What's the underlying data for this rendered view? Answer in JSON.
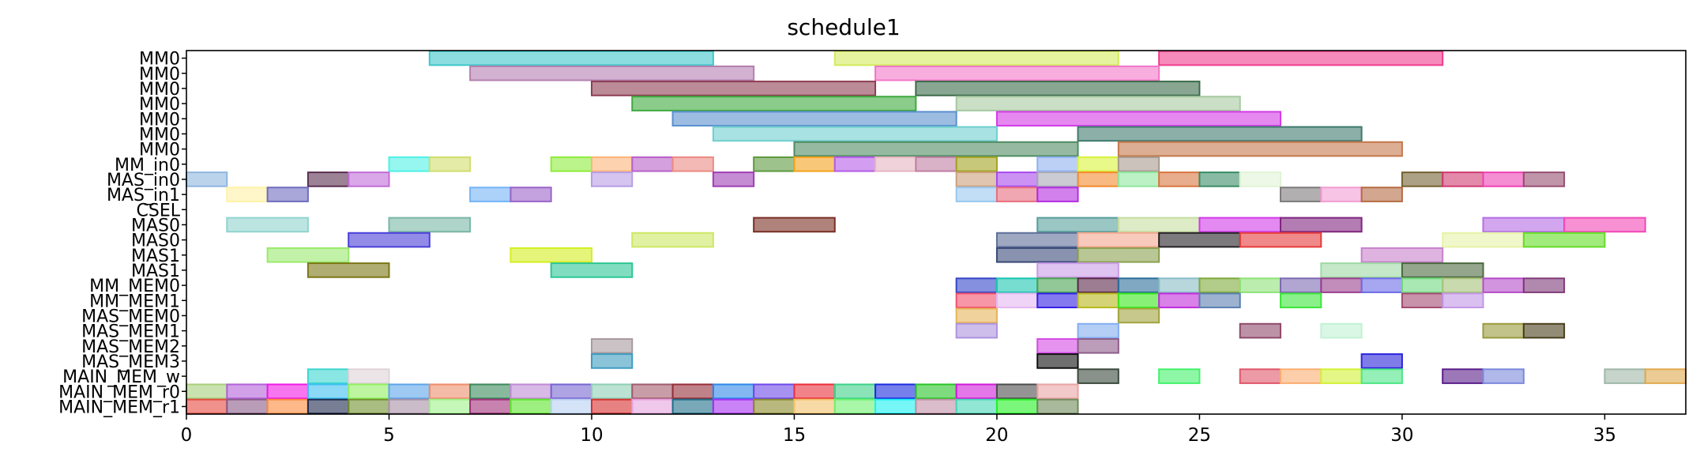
{
  "chart_data": {
    "type": "gantt",
    "title": "schedule1",
    "xlabel": "",
    "ylabel": "",
    "xlim": [
      0,
      37
    ],
    "xticks": [
      0,
      5,
      10,
      15,
      20,
      25,
      30,
      35
    ],
    "grid": false,
    "legend": "none",
    "rows": [
      "MM0",
      "MM0",
      "MM0",
      "MM0",
      "MM0",
      "MM0",
      "MM0",
      "MM_in0",
      "MAS_in0",
      "MAS_in1",
      "CSEL",
      "MAS0",
      "MAS0",
      "MAS1",
      "MAS1",
      "MM_MEM0",
      "MM_MEM1",
      "MAS_MEM0",
      "MAS_MEM1",
      "MAS_MEM2",
      "MAS_MEM3",
      "MAIN_MEM_w",
      "MAIN_MEM_r0",
      "MAIN_MEM_r1"
    ],
    "tasks": [
      {
        "row": 0,
        "start": 6,
        "end": 13,
        "color": "#3fc7c9"
      },
      {
        "row": 0,
        "start": 16,
        "end": 23,
        "color": "#d4ea5e"
      },
      {
        "row": 0,
        "start": 24,
        "end": 31,
        "color": "#f03c8c"
      },
      {
        "row": 1,
        "start": 7,
        "end": 14,
        "color": "#b47fb0"
      },
      {
        "row": 1,
        "start": 17,
        "end": 24,
        "color": "#f277c8"
      },
      {
        "row": 2,
        "start": 10,
        "end": 17,
        "color": "#8e3d52"
      },
      {
        "row": 2,
        "start": 18,
        "end": 25,
        "color": "#3b6b4a"
      },
      {
        "row": 3,
        "start": 11,
        "end": 18,
        "color": "#3daa3d"
      },
      {
        "row": 3,
        "start": 19,
        "end": 26,
        "color": "#a6c9a0"
      },
      {
        "row": 4,
        "start": 12,
        "end": 19,
        "color": "#5b8fcf"
      },
      {
        "row": 4,
        "start": 20,
        "end": 27,
        "color": "#d33be6"
      },
      {
        "row": 5,
        "start": 13,
        "end": 20,
        "color": "#6fcfcf"
      },
      {
        "row": 5,
        "start": 22,
        "end": 29,
        "color": "#3f7a6d"
      },
      {
        "row": 6,
        "start": 15,
        "end": 22,
        "color": "#4f8c62"
      },
      {
        "row": 6,
        "start": 23,
        "end": 30,
        "color": "#c4784b"
      },
      {
        "row": 7,
        "start": 5,
        "end": 6,
        "color": "#4ff1e6"
      },
      {
        "row": 7,
        "start": 6,
        "end": 7,
        "color": "#d2dd6d"
      },
      {
        "row": 7,
        "start": 9,
        "end": 10,
        "color": "#8eec3c"
      },
      {
        "row": 7,
        "start": 10,
        "end": 11,
        "color": "#fbb57a"
      },
      {
        "row": 7,
        "start": 11,
        "end": 12,
        "color": "#b861c7"
      },
      {
        "row": 7,
        "start": 12,
        "end": 13,
        "color": "#eb8b83"
      },
      {
        "row": 7,
        "start": 14,
        "end": 15,
        "color": "#5d9a3f"
      },
      {
        "row": 7,
        "start": 15,
        "end": 16,
        "color": "#f3a21d"
      },
      {
        "row": 7,
        "start": 16,
        "end": 17,
        "color": "#b55de8"
      },
      {
        "row": 7,
        "start": 17,
        "end": 18,
        "color": "#e6b5c1"
      },
      {
        "row": 7,
        "start": 18,
        "end": 19,
        "color": "#bf7fa3"
      },
      {
        "row": 7,
        "start": 19,
        "end": 20,
        "color": "#a4a323"
      },
      {
        "row": 7,
        "start": 21,
        "end": 22,
        "color": "#8fb1f0"
      },
      {
        "row": 7,
        "start": 22,
        "end": 23,
        "color": "#d9f33b"
      },
      {
        "row": 7,
        "start": 23,
        "end": 24,
        "color": "#a89a8f"
      },
      {
        "row": 8,
        "start": 0,
        "end": 1,
        "color": "#8fb6e0"
      },
      {
        "row": 8,
        "start": 3,
        "end": 4,
        "color": "#5a2f4f"
      },
      {
        "row": 8,
        "start": 4,
        "end": 5,
        "color": "#c16ed8"
      },
      {
        "row": 8,
        "start": 10,
        "end": 11,
        "color": "#b89de4"
      },
      {
        "row": 8,
        "start": 13,
        "end": 14,
        "color": "#9f3fb5"
      },
      {
        "row": 8,
        "start": 19,
        "end": 20,
        "color": "#cc9f7b"
      },
      {
        "row": 8,
        "start": 20,
        "end": 21,
        "color": "#a84aec"
      },
      {
        "row": 8,
        "start": 21,
        "end": 22,
        "color": "#a8a9b7"
      },
      {
        "row": 8,
        "start": 22,
        "end": 23,
        "color": "#f38b2f"
      },
      {
        "row": 8,
        "start": 23,
        "end": 24,
        "color": "#8ee79e"
      },
      {
        "row": 8,
        "start": 24,
        "end": 25,
        "color": "#d9763f"
      },
      {
        "row": 8,
        "start": 25,
        "end": 26,
        "color": "#3b8d67"
      },
      {
        "row": 8,
        "start": 26,
        "end": 27,
        "color": "#e1f3d6"
      },
      {
        "row": 8,
        "start": 30,
        "end": 31,
        "color": "#756232"
      },
      {
        "row": 8,
        "start": 31,
        "end": 32,
        "color": "#d13b72"
      },
      {
        "row": 8,
        "start": 32,
        "end": 33,
        "color": "#ef42b5"
      },
      {
        "row": 8,
        "start": 33,
        "end": 34,
        "color": "#964f72"
      },
      {
        "row": 9,
        "start": 1,
        "end": 2,
        "color": "#fff2a6"
      },
      {
        "row": 9,
        "start": 2,
        "end": 3,
        "color": "#6f6cbf"
      },
      {
        "row": 9,
        "start": 7,
        "end": 8,
        "color": "#74b4f7"
      },
      {
        "row": 9,
        "start": 8,
        "end": 9,
        "color": "#9b64c9"
      },
      {
        "row": 9,
        "start": 19,
        "end": 20,
        "color": "#98c8f0"
      },
      {
        "row": 9,
        "start": 20,
        "end": 21,
        "color": "#e86d7e"
      },
      {
        "row": 9,
        "start": 21,
        "end": 22,
        "color": "#b42de0"
      },
      {
        "row": 9,
        "start": 27,
        "end": 28,
        "color": "#7d7a7a"
      },
      {
        "row": 9,
        "start": 28,
        "end": 29,
        "color": "#f29cd3"
      },
      {
        "row": 9,
        "start": 29,
        "end": 30,
        "color": "#b66b44"
      },
      {
        "row": 11,
        "start": 1,
        "end": 3,
        "color": "#8fd4cf"
      },
      {
        "row": 11,
        "start": 5,
        "end": 7,
        "color": "#7ab7a5"
      },
      {
        "row": 11,
        "start": 14,
        "end": 16,
        "color": "#7a2f25"
      },
      {
        "row": 11,
        "start": 21,
        "end": 23,
        "color": "#56a09c"
      },
      {
        "row": 11,
        "start": 23,
        "end": 25,
        "color": "#c6dea1"
      },
      {
        "row": 11,
        "start": 25,
        "end": 27,
        "color": "#d23be8"
      },
      {
        "row": 11,
        "start": 27,
        "end": 29,
        "color": "#80257f"
      },
      {
        "row": 11,
        "start": 32,
        "end": 34,
        "color": "#b66de5"
      },
      {
        "row": 11,
        "start": 34,
        "end": 36,
        "color": "#f248b7"
      },
      {
        "row": 12,
        "start": 4,
        "end": 6,
        "color": "#4a3fd8"
      },
      {
        "row": 12,
        "start": 11,
        "end": 13,
        "color": "#cde864"
      },
      {
        "row": 12,
        "start": 20,
        "end": 22,
        "color": "#5e6f98"
      },
      {
        "row": 12,
        "start": 22,
        "end": 24,
        "color": "#f2a68e"
      },
      {
        "row": 12,
        "start": 24,
        "end": 26,
        "color": "#262226"
      },
      {
        "row": 12,
        "start": 26,
        "end": 28,
        "color": "#e63b3b"
      },
      {
        "row": 12,
        "start": 31,
        "end": 33,
        "color": "#e6f3a8"
      },
      {
        "row": 12,
        "start": 33,
        "end": 35,
        "color": "#63dd27"
      },
      {
        "row": 13,
        "start": 2,
        "end": 4,
        "color": "#9aea6d"
      },
      {
        "row": 13,
        "start": 8,
        "end": 10,
        "color": "#d4ef21"
      },
      {
        "row": 13,
        "start": 20,
        "end": 22,
        "color": "#3a4a78"
      },
      {
        "row": 13,
        "start": 22,
        "end": 24,
        "color": "#8aa04f"
      },
      {
        "row": 13,
        "start": 29,
        "end": 31,
        "color": "#c881cc"
      },
      {
        "row": 14,
        "start": 3,
        "end": 5,
        "color": "#7b7716"
      },
      {
        "row": 14,
        "start": 9,
        "end": 11,
        "color": "#2dc795"
      },
      {
        "row": 14,
        "start": 21,
        "end": 23,
        "color": "#c99be6"
      },
      {
        "row": 14,
        "start": 28,
        "end": 30,
        "color": "#9fd9a5"
      },
      {
        "row": 14,
        "start": 30,
        "end": 32,
        "color": "#4d6a40"
      },
      {
        "row": 15,
        "start": 19,
        "end": 20,
        "color": "#3447c8"
      },
      {
        "row": 15,
        "start": 20,
        "end": 21,
        "color": "#1ac6b1"
      },
      {
        "row": 15,
        "start": 21,
        "end": 22,
        "color": "#4aa352"
      },
      {
        "row": 15,
        "start": 22,
        "end": 23,
        "color": "#5a2748"
      },
      {
        "row": 15,
        "start": 23,
        "end": 24,
        "color": "#2b6e9a"
      },
      {
        "row": 15,
        "start": 24,
        "end": 25,
        "color": "#88bcc7"
      },
      {
        "row": 15,
        "start": 25,
        "end": 26,
        "color": "#7eaa3a"
      },
      {
        "row": 15,
        "start": 26,
        "end": 27,
        "color": "#8ee278"
      },
      {
        "row": 15,
        "start": 27,
        "end": 28,
        "color": "#7d6ab3"
      },
      {
        "row": 15,
        "start": 28,
        "end": 29,
        "color": "#9a3f8e"
      },
      {
        "row": 15,
        "start": 29,
        "end": 30,
        "color": "#6c6ae6"
      },
      {
        "row": 15,
        "start": 30,
        "end": 31,
        "color": "#6fd97f"
      },
      {
        "row": 15,
        "start": 31,
        "end": 32,
        "color": "#a6c27a"
      },
      {
        "row": 15,
        "start": 32,
        "end": 33,
        "color": "#b64cc9"
      },
      {
        "row": 15,
        "start": 33,
        "end": 34,
        "color": "#7f3a78"
      },
      {
        "row": 16,
        "start": 19,
        "end": 20,
        "color": "#f2506b"
      },
      {
        "row": 16,
        "start": 20,
        "end": 21,
        "color": "#e6b7f2"
      },
      {
        "row": 16,
        "start": 21,
        "end": 22,
        "color": "#3320e6"
      },
      {
        "row": 16,
        "start": 22,
        "end": 23,
        "color": "#b8b81c"
      },
      {
        "row": 16,
        "start": 23,
        "end": 24,
        "color": "#38e61c"
      },
      {
        "row": 16,
        "start": 24,
        "end": 25,
        "color": "#c02cdb"
      },
      {
        "row": 16,
        "start": 25,
        "end": 26,
        "color": "#5b7fb0"
      },
      {
        "row": 16,
        "start": 27,
        "end": 28,
        "color": "#3ce63a"
      },
      {
        "row": 16,
        "start": 30,
        "end": 31,
        "color": "#a44a72"
      },
      {
        "row": 16,
        "start": 31,
        "end": 32,
        "color": "#c296e6"
      },
      {
        "row": 17,
        "start": 19,
        "end": 20,
        "color": "#e6b45a"
      },
      {
        "row": 17,
        "start": 23,
        "end": 24,
        "color": "#a2a43e"
      },
      {
        "row": 18,
        "start": 19,
        "end": 20,
        "color": "#ae93de"
      },
      {
        "row": 18,
        "start": 22,
        "end": 23,
        "color": "#83aef0"
      },
      {
        "row": 18,
        "start": 26,
        "end": 27,
        "color": "#8f4a6a"
      },
      {
        "row": 18,
        "start": 28,
        "end": 29,
        "color": "#c2f2d4"
      },
      {
        "row": 18,
        "start": 32,
        "end": 33,
        "color": "#9a9a3e"
      },
      {
        "row": 18,
        "start": 33,
        "end": 34,
        "color": "#4a3f1c"
      },
      {
        "row": 19,
        "start": 10,
        "end": 11,
        "color": "#a89a9f"
      },
      {
        "row": 19,
        "start": 21,
        "end": 22,
        "color": "#d64be6"
      },
      {
        "row": 19,
        "start": 22,
        "end": 23,
        "color": "#8d5c8a"
      },
      {
        "row": 20,
        "start": 10,
        "end": 11,
        "color": "#3e9cbf"
      },
      {
        "row": 20,
        "start": 21,
        "end": 22,
        "color": "#111111"
      },
      {
        "row": 20,
        "start": 29,
        "end": 30,
        "color": "#2a25dc"
      },
      {
        "row": 21,
        "start": 3,
        "end": 4,
        "color": "#3cd6d0"
      },
      {
        "row": 21,
        "start": 4,
        "end": 5,
        "color": "#e0d3d8"
      },
      {
        "row": 21,
        "start": 22,
        "end": 23,
        "color": "#3a4a3c"
      },
      {
        "row": 21,
        "start": 24,
        "end": 25,
        "color": "#43f26b"
      },
      {
        "row": 21,
        "start": 26,
        "end": 27,
        "color": "#e0576b"
      },
      {
        "row": 21,
        "start": 27,
        "end": 28,
        "color": "#fbae72"
      },
      {
        "row": 21,
        "start": 28,
        "end": 29,
        "color": "#d2f235"
      },
      {
        "row": 21,
        "start": 29,
        "end": 30,
        "color": "#4ce685"
      },
      {
        "row": 21,
        "start": 31,
        "end": 32,
        "color": "#5a1e8a"
      },
      {
        "row": 21,
        "start": 32,
        "end": 33,
        "color": "#7b88dc"
      },
      {
        "row": 21,
        "start": 35,
        "end": 36,
        "color": "#a0b7a8"
      },
      {
        "row": 21,
        "start": 36,
        "end": 37,
        "color": "#e0a94e"
      },
      {
        "row": 22,
        "start": 0,
        "end": 1,
        "color": "#a7cf79"
      },
      {
        "row": 22,
        "start": 1,
        "end": 2,
        "color": "#b261d9"
      },
      {
        "row": 22,
        "start": 2,
        "end": 3,
        "color": "#f21ae6"
      },
      {
        "row": 22,
        "start": 3,
        "end": 4,
        "color": "#3ec0f2"
      },
      {
        "row": 22,
        "start": 4,
        "end": 5,
        "color": "#92ef62"
      },
      {
        "row": 22,
        "start": 5,
        "end": 6,
        "color": "#5ea5ea"
      },
      {
        "row": 22,
        "start": 6,
        "end": 7,
        "color": "#ed8d6b"
      },
      {
        "row": 22,
        "start": 7,
        "end": 8,
        "color": "#3b8a5b"
      },
      {
        "row": 22,
        "start": 8,
        "end": 9,
        "color": "#c08ad6"
      },
      {
        "row": 22,
        "start": 9,
        "end": 10,
        "color": "#7865d1"
      },
      {
        "row": 22,
        "start": 10,
        "end": 11,
        "color": "#8ecfb4"
      },
      {
        "row": 22,
        "start": 11,
        "end": 12,
        "color": "#a35b6e"
      },
      {
        "row": 22,
        "start": 12,
        "end": 13,
        "color": "#962f3a"
      },
      {
        "row": 22,
        "start": 13,
        "end": 14,
        "color": "#2f87ea"
      },
      {
        "row": 22,
        "start": 14,
        "end": 15,
        "color": "#6e4ae8"
      },
      {
        "row": 22,
        "start": 15,
        "end": 16,
        "color": "#ea2f3a"
      },
      {
        "row": 22,
        "start": 16,
        "end": 17,
        "color": "#3dd189"
      },
      {
        "row": 22,
        "start": 17,
        "end": 18,
        "color": "#1a2be0"
      },
      {
        "row": 22,
        "start": 18,
        "end": 19,
        "color": "#28c428"
      },
      {
        "row": 22,
        "start": 19,
        "end": 20,
        "color": "#d11ad9"
      },
      {
        "row": 22,
        "start": 20,
        "end": 21,
        "color": "#4d4d4d"
      },
      {
        "row": 22,
        "start": 21,
        "end": 22,
        "color": "#eaa3a3"
      },
      {
        "row": 23,
        "start": 0,
        "end": 1,
        "color": "#e6483f"
      },
      {
        "row": 23,
        "start": 1,
        "end": 2,
        "color": "#8a5c88"
      },
      {
        "row": 23,
        "start": 2,
        "end": 3,
        "color": "#fb8a3c"
      },
      {
        "row": 23,
        "start": 3,
        "end": 4,
        "color": "#1e2a4f"
      },
      {
        "row": 23,
        "start": 4,
        "end": 5,
        "color": "#6f8f2e"
      },
      {
        "row": 23,
        "start": 5,
        "end": 6,
        "color": "#a890a5"
      },
      {
        "row": 23,
        "start": 6,
        "end": 7,
        "color": "#9ef28a"
      },
      {
        "row": 23,
        "start": 7,
        "end": 8,
        "color": "#a32f7b"
      },
      {
        "row": 23,
        "start": 8,
        "end": 9,
        "color": "#5ce62a"
      },
      {
        "row": 23,
        "start": 9,
        "end": 10,
        "color": "#b8d0f2"
      },
      {
        "row": 23,
        "start": 10,
        "end": 11,
        "color": "#d62f2f"
      },
      {
        "row": 23,
        "start": 11,
        "end": 12,
        "color": "#e6a3e0"
      },
      {
        "row": 23,
        "start": 12,
        "end": 13,
        "color": "#1f6f8a"
      },
      {
        "row": 23,
        "start": 13,
        "end": 14,
        "color": "#a62ff2"
      },
      {
        "row": 23,
        "start": 14,
        "end": 15,
        "color": "#8a8a2a"
      },
      {
        "row": 23,
        "start": 15,
        "end": 16,
        "color": "#f2c26b"
      },
      {
        "row": 23,
        "start": 16,
        "end": 17,
        "color": "#6ef06e"
      },
      {
        "row": 23,
        "start": 17,
        "end": 18,
        "color": "#1af2f2"
      },
      {
        "row": 23,
        "start": 18,
        "end": 19,
        "color": "#c28fa6"
      },
      {
        "row": 23,
        "start": 19,
        "end": 20,
        "color": "#4ad6b8"
      },
      {
        "row": 23,
        "start": 20,
        "end": 21,
        "color": "#22f222"
      },
      {
        "row": 23,
        "start": 21,
        "end": 22,
        "color": "#6f8a5a"
      }
    ]
  }
}
